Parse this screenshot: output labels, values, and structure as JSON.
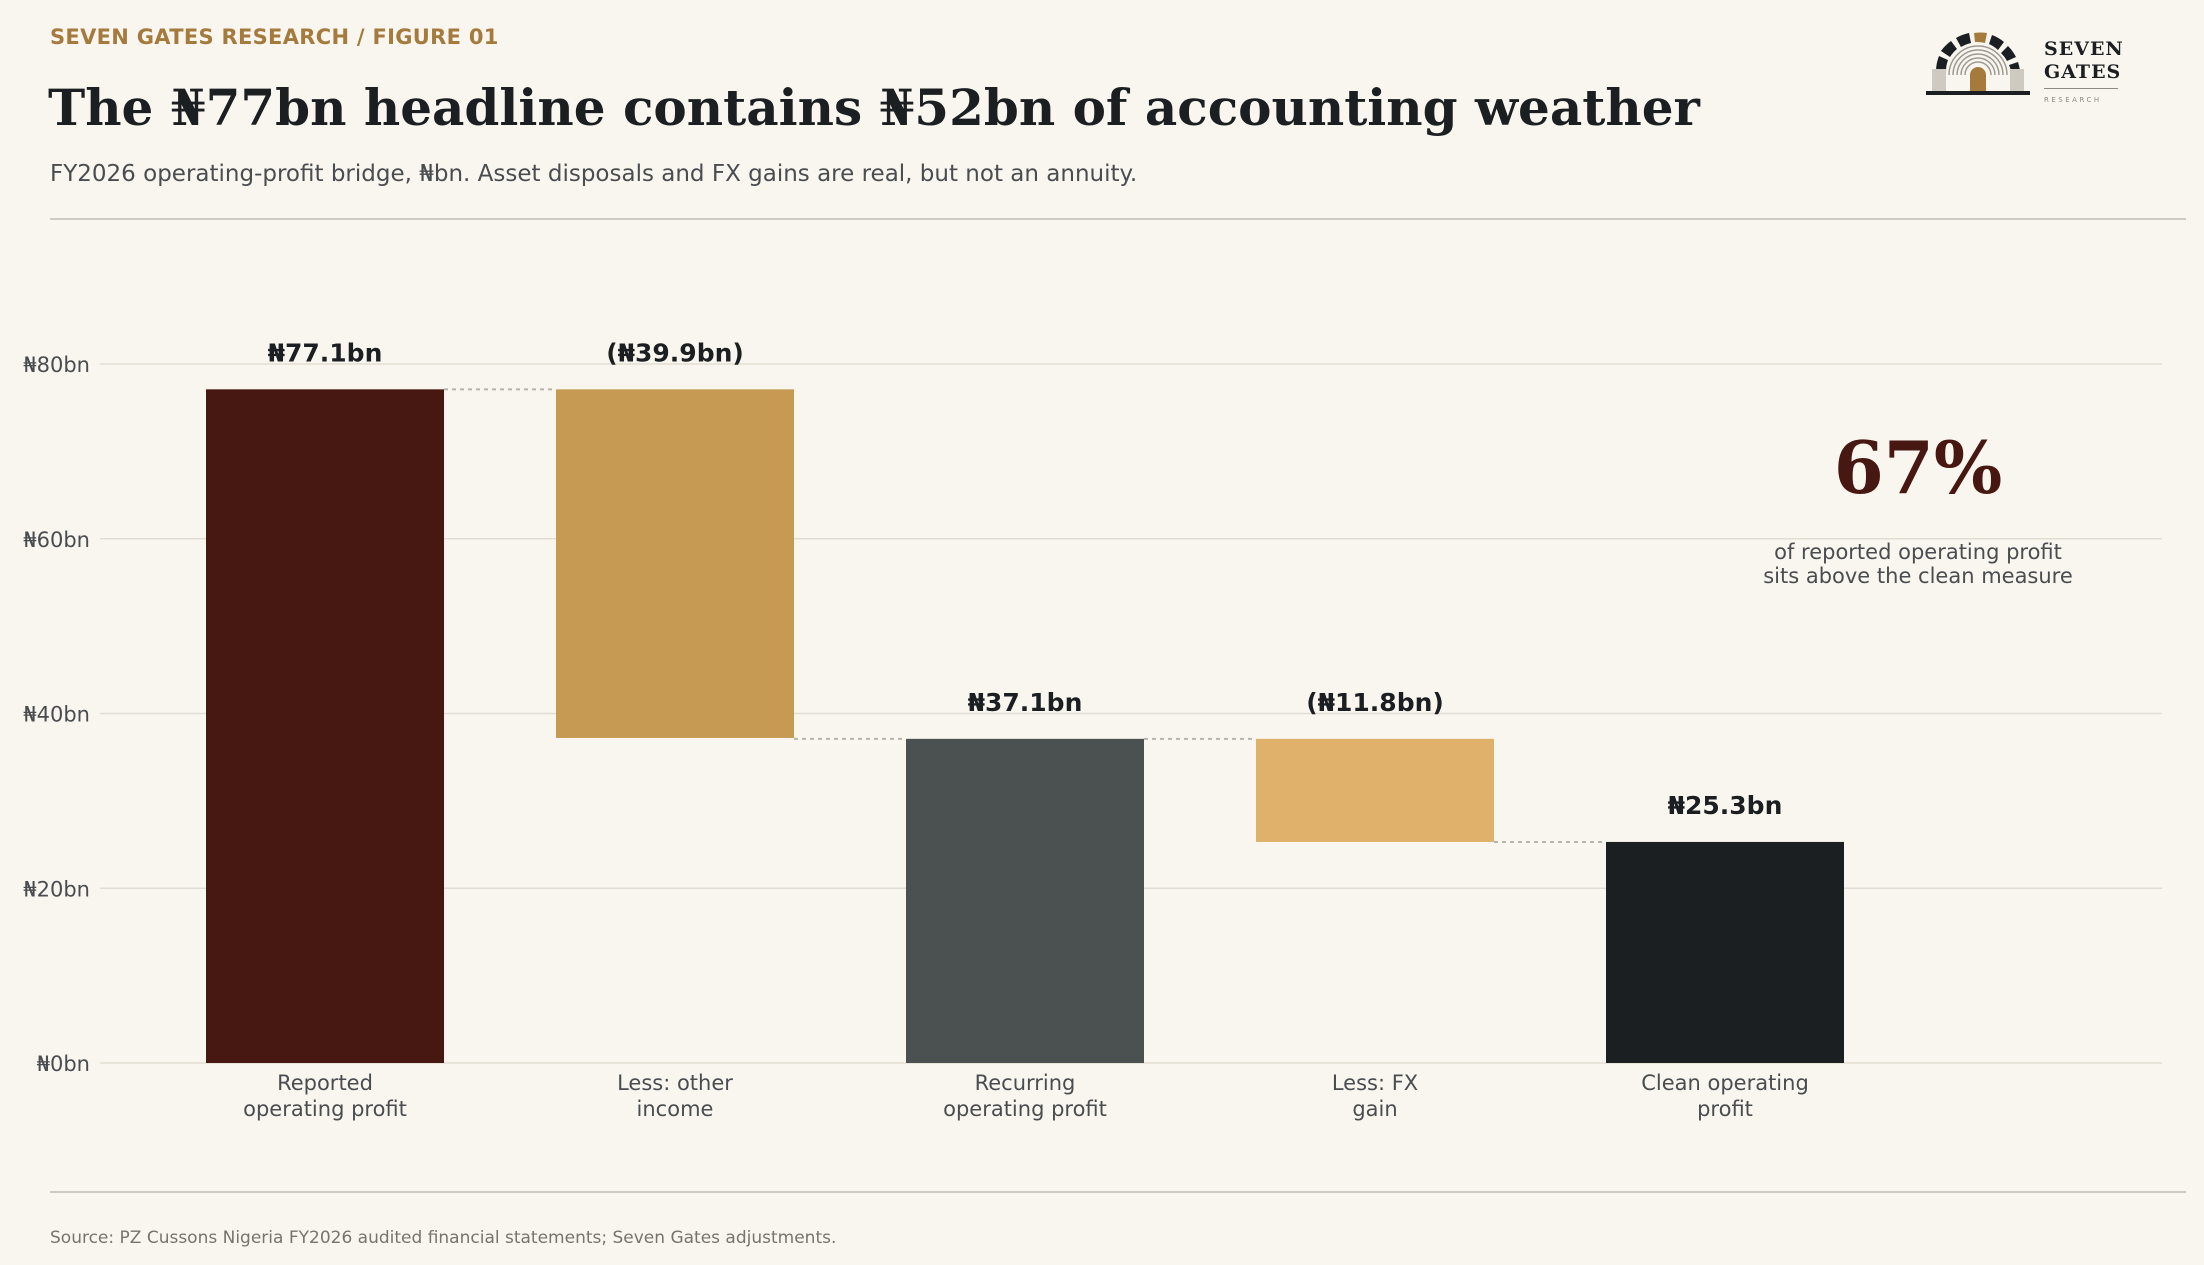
{
  "header": {
    "kicker": "SEVEN GATES RESEARCH  /  FIGURE 01",
    "title": "The ₦77bn headline contains ₦52bn of accounting weather",
    "subtitle": "FY2026 operating-profit bridge, ₦bn. Asset disposals and FX gains are real, but not an annuity."
  },
  "logo": {
    "line1": "SEVEN",
    "line2": "GATES",
    "sub": "RESEARCH"
  },
  "callout": {
    "value": "67%",
    "line1": "of reported operating profit",
    "line2": "sits above the clean measure"
  },
  "footer": {
    "source": "Source: PZ Cussons Nigeria FY2026 audited financial statements; Seven Gates adjustments."
  },
  "chart_data": {
    "type": "bar",
    "subtype": "waterfall",
    "categories": [
      [
        "Reported",
        "operating profit"
      ],
      [
        "Less: other",
        "income"
      ],
      [
        "Recurring",
        "operating profit"
      ],
      [
        "Less: FX",
        "gain"
      ],
      [
        "Clean operating",
        "profit"
      ]
    ],
    "bars": [
      {
        "kind": "total",
        "base": 0,
        "top": 77.1,
        "label": "₦77.1bn",
        "color": "#471711"
      },
      {
        "kind": "decrease",
        "base": 37.2,
        "top": 77.1,
        "label": "(₦39.9bn)",
        "color": "#c69a53"
      },
      {
        "kind": "total",
        "base": 0,
        "top": 37.1,
        "label": "₦37.1bn",
        "color": "#4a5150"
      },
      {
        "kind": "decrease",
        "base": 25.3,
        "top": 37.1,
        "label": "(₦11.8bn)",
        "color": "#e0b16a"
      },
      {
        "kind": "total",
        "base": 0,
        "top": 25.3,
        "label": "₦25.3bn",
        "color": "#1b1f22"
      }
    ],
    "yticks": [
      {
        "value": 0,
        "label": "₦0bn"
      },
      {
        "value": 20,
        "label": "₦20bn"
      },
      {
        "value": 40,
        "label": "₦40bn"
      },
      {
        "value": 60,
        "label": "₦60bn"
      },
      {
        "value": 80,
        "label": "₦80bn"
      }
    ],
    "ylim": [
      0,
      80
    ],
    "grid": true,
    "connectors": true
  }
}
